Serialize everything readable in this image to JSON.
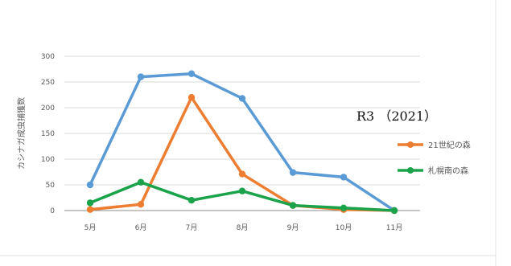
{
  "chart_data": {
    "type": "line",
    "categories": [
      "5月",
      "6月",
      "7月",
      "8月",
      "9月",
      "10月",
      "11月"
    ],
    "series": [
      {
        "name": "",
        "color": "#5b9bd5",
        "values": [
          50,
          260,
          266,
          218,
          74,
          65,
          0
        ]
      },
      {
        "name": "21世紀の森",
        "color": "#ed7d31",
        "values": [
          2,
          12,
          220,
          71,
          10,
          2,
          0
        ]
      },
      {
        "name": "札幌南の森",
        "color": "#1aa34a",
        "values": [
          15,
          55,
          20,
          38,
          10,
          5,
          0
        ]
      }
    ],
    "yticks": [
      "0",
      "50",
      "100",
      "150",
      "200",
      "250",
      "300"
    ],
    "ylim": [
      0,
      300
    ],
    "ylabel": "カシナガ成虫捕獲数",
    "annotation": "R3 （2021）",
    "grid": true,
    "legend_position": "right"
  }
}
